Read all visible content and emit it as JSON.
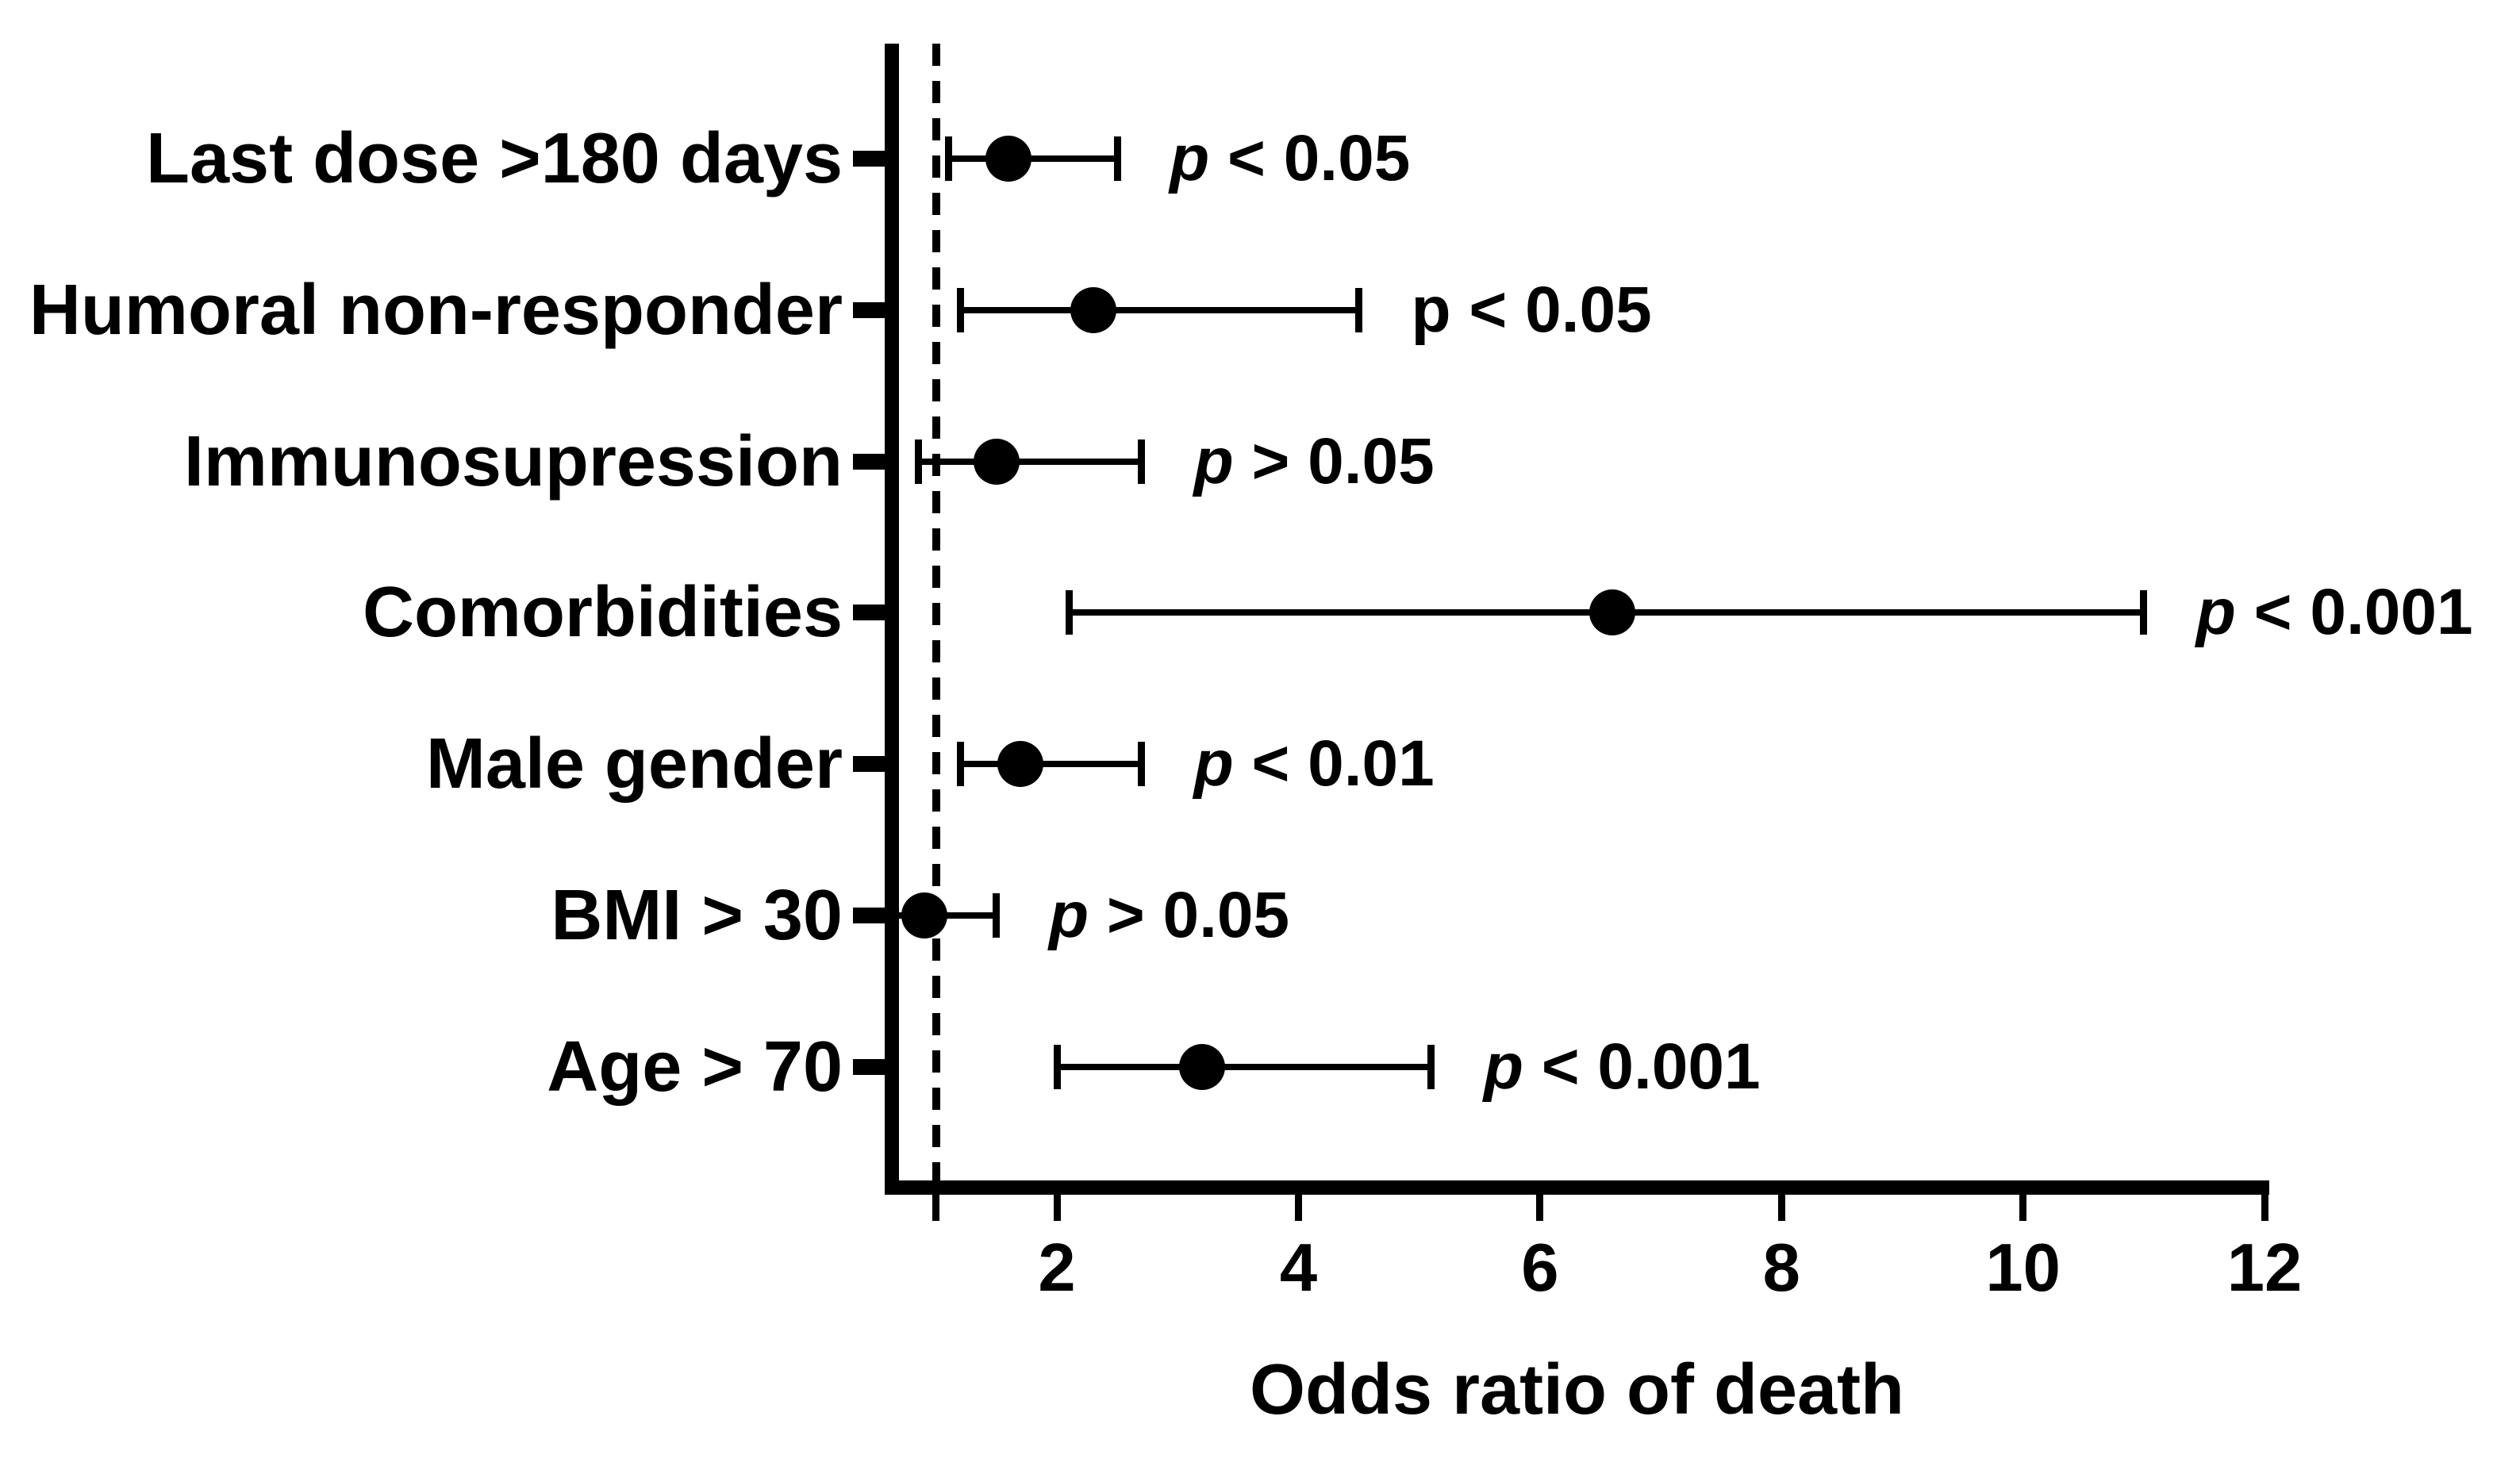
{
  "figure": {
    "background_color": "#ffffff",
    "ink_color": "#000000"
  },
  "chart_data": {
    "type": "scatter",
    "subtype": "forest-plot",
    "title": "",
    "xlabel": "Odds ratio of death",
    "ylabel": "",
    "xlim": [
      0.6,
      12
    ],
    "x_ticks": [
      2,
      4,
      6,
      8,
      10,
      12
    ],
    "unlabeled_x_tick": 1,
    "reference_line_x": 1,
    "reference_line_style": "dashed",
    "grid": false,
    "legend": "none",
    "marker": "filled-circle",
    "categories": [
      "Last dose >180 days",
      "Humoral non-responder",
      "Immunosupression",
      "Comorbidities",
      "Male gender",
      "BMI > 30",
      "Age > 70"
    ],
    "rows": [
      {
        "label": "Last dose >180 days",
        "or": 1.6,
        "ci_low": 1.1,
        "ci_high": 2.5,
        "p_label": "p < 0.05",
        "p_italic": true
      },
      {
        "label": "Humoral non-responder",
        "or": 2.3,
        "ci_low": 1.2,
        "ci_high": 4.5,
        "p_label": "p < 0.05",
        "p_italic": false
      },
      {
        "label": "Immunosupression",
        "or": 1.5,
        "ci_low": 0.85,
        "ci_high": 2.7,
        "p_label": "p > 0.05",
        "p_italic": true
      },
      {
        "label": "Comorbidities",
        "or": 6.6,
        "ci_low": 2.1,
        "ci_high": 11.0,
        "p_label": "p < 0.001",
        "p_italic": true
      },
      {
        "label": "Male gender",
        "or": 1.7,
        "ci_low": 1.2,
        "ci_high": 2.7,
        "p_label": "p < 0.01",
        "p_italic": true
      },
      {
        "label": "BMI > 30",
        "or": 0.9,
        "ci_low": 0.6,
        "ci_high": 1.5,
        "p_label": "p > 0.05",
        "p_italic": true
      },
      {
        "label": "Age > 70",
        "or": 3.2,
        "ci_low": 2.0,
        "ci_high": 5.1,
        "p_label": "p < 0.001",
        "p_italic": true
      }
    ]
  }
}
